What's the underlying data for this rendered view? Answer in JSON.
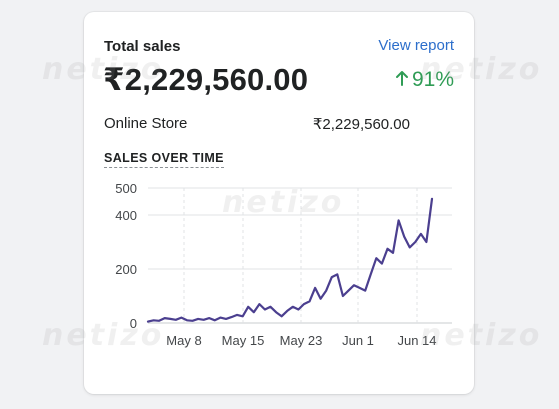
{
  "card": {
    "title": "Total sales",
    "view_report": "View report",
    "total_amount": "₹2,229,560.00",
    "change": "91%",
    "channel_name": "Online Store",
    "channel_amount": "₹2,229,560.00",
    "section_title": "SALES OVER TIME"
  },
  "watermark": {
    "text": "netizo"
  },
  "colors": {
    "line": "#4b3f8f",
    "positive": "#2f9c55",
    "link": "#2c6ecb"
  },
  "chart_data": {
    "type": "line",
    "x_tick_labels": [
      "May 8",
      "May 15",
      "May 23",
      "Jun 1",
      "Jun 14"
    ],
    "y_ticks": [
      0,
      200,
      400,
      500
    ],
    "y_tick_labels": [
      "0",
      "200",
      "400",
      "500"
    ],
    "ylim": [
      0,
      500
    ],
    "series": [
      {
        "values": [
          5,
          10,
          8,
          18,
          15,
          12,
          20,
          10,
          8,
          15,
          12,
          18,
          10,
          20,
          15,
          22,
          30,
          25,
          60,
          40,
          70,
          50,
          60,
          40,
          25,
          45,
          60,
          50,
          70,
          80,
          130,
          90,
          120,
          170,
          180,
          100,
          120,
          140,
          130,
          120,
          180,
          240,
          220,
          275,
          260,
          380,
          320,
          280,
          300,
          330,
          300,
          460
        ]
      }
    ],
    "grid": true
  }
}
